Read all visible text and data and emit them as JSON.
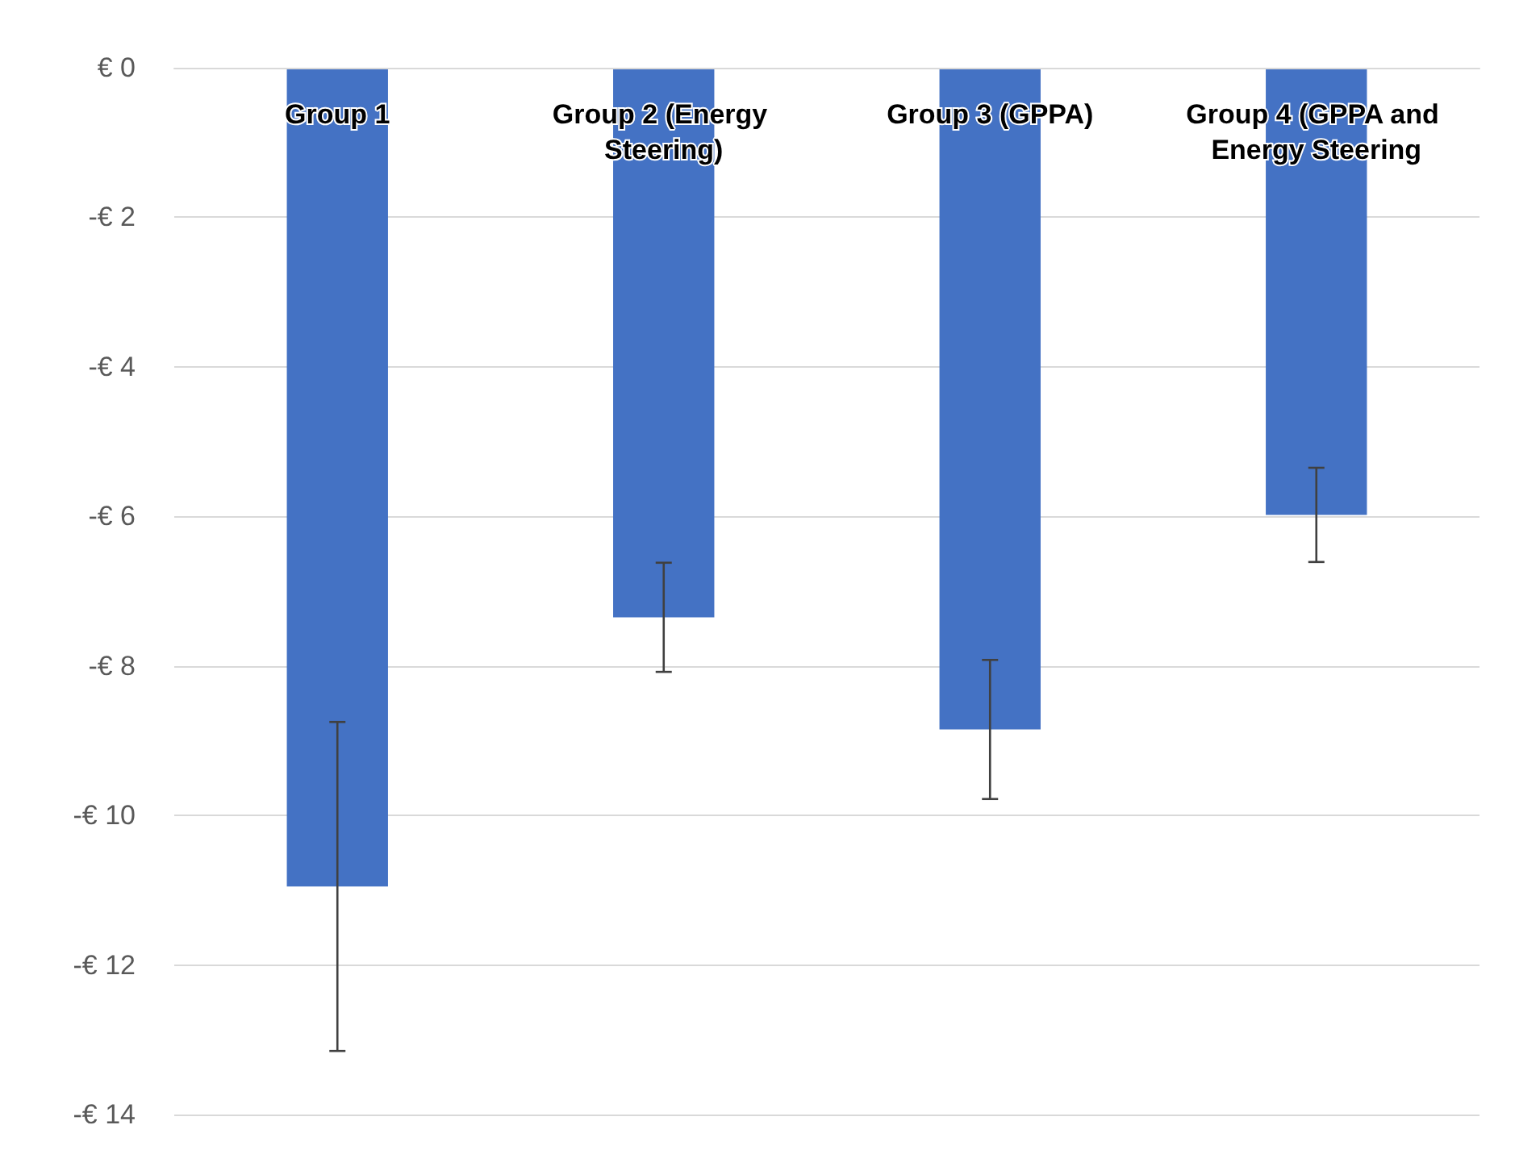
{
  "chart_data": {
    "type": "bar",
    "categories": [
      "Group 1",
      "Group 2 (Energy Steering)",
      "Group 3 (GPPA)",
      "Group 4 (GPPA and Energy Steering"
    ],
    "values": [
      -10.95,
      -7.35,
      -8.85,
      -5.98
    ],
    "errors": [
      2.2,
      0.73,
      0.93,
      0.63
    ],
    "color": "#4472c4",
    "ylim": [
      -14,
      0
    ],
    "yticks": [
      {
        "value": -14,
        "label": "-€ 14"
      },
      {
        "value": -12,
        "label": "-€ 12"
      },
      {
        "value": -10,
        "label": "-€ 10"
      },
      {
        "value": -8,
        "label": "-€ 8"
      },
      {
        "value": -6,
        "label": "-€ 6"
      },
      {
        "value": -4,
        "label": "-€ 4"
      },
      {
        "value": -2,
        "label": "-€ 2"
      },
      {
        "value": 0,
        "label": "€ 0"
      }
    ],
    "grid": "y"
  }
}
